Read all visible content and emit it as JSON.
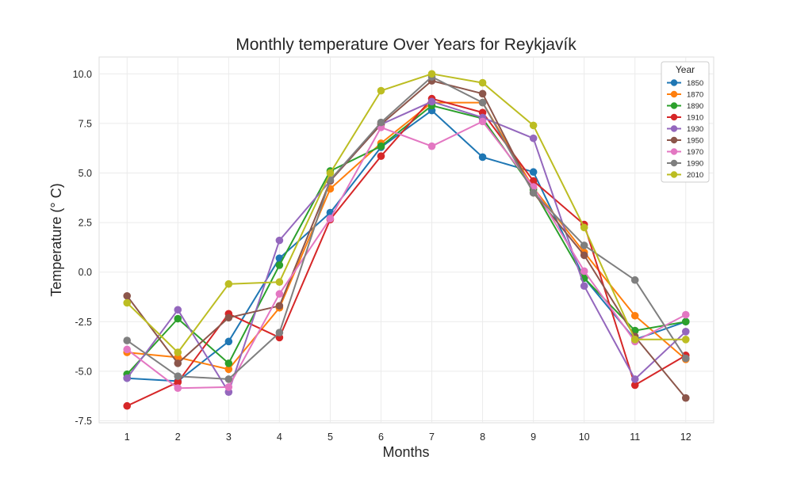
{
  "chart_data": {
    "type": "line",
    "title": "Monthly temperature Over Years for Reykjavík",
    "xlabel": "Months",
    "ylabel": "Temperature (° C)",
    "x": [
      1,
      2,
      3,
      4,
      5,
      6,
      7,
      8,
      9,
      10,
      11,
      12
    ],
    "xlim": [
      0.45,
      12.55
    ],
    "ylim": [
      -7.6,
      10.85
    ],
    "yticks": [
      -7.5,
      -5.0,
      -2.5,
      0.0,
      2.5,
      5.0,
      7.5,
      10.0
    ],
    "grid": true,
    "legend": {
      "title": "Year",
      "placement": "top-right"
    },
    "series": [
      {
        "name": "1850",
        "color": "#1f77b4",
        "values": [
          -5.35,
          -5.5,
          -3.5,
          0.7,
          3.0,
          6.3,
          8.15,
          5.8,
          5.05,
          -0.3,
          -3.4,
          -2.5
        ]
      },
      {
        "name": "1870",
        "color": "#ff7f0e",
        "values": [
          -4.05,
          -4.3,
          -4.9,
          -1.8,
          4.2,
          6.5,
          8.55,
          8.55,
          4.25,
          1.0,
          -2.2,
          -4.4
        ]
      },
      {
        "name": "1890",
        "color": "#2ca02c",
        "values": [
          -5.15,
          -2.35,
          -4.6,
          0.35,
          5.1,
          6.35,
          8.4,
          7.75,
          4.15,
          -0.3,
          -2.95,
          -2.5
        ]
      },
      {
        "name": "1910",
        "color": "#d62728",
        "values": [
          -6.75,
          -5.55,
          -2.1,
          -3.3,
          2.65,
          5.85,
          8.75,
          8.05,
          4.6,
          2.4,
          -5.7,
          -4.2
        ]
      },
      {
        "name": "1930",
        "color": "#9467bd",
        "values": [
          -5.35,
          -1.9,
          -6.05,
          1.6,
          4.6,
          7.45,
          8.6,
          7.8,
          6.75,
          -0.7,
          -5.4,
          -3.0
        ]
      },
      {
        "name": "1950",
        "color": "#8c564b",
        "values": [
          -1.2,
          -4.6,
          -2.3,
          -1.7,
          4.6,
          7.45,
          9.65,
          9.0,
          4.0,
          0.85,
          -3.25,
          -6.35
        ]
      },
      {
        "name": "1970",
        "color": "#e377c2",
        "values": [
          -3.9,
          -5.85,
          -5.8,
          -1.1,
          2.7,
          7.3,
          6.35,
          7.6,
          4.3,
          0.05,
          -3.5,
          -2.15
        ]
      },
      {
        "name": "1990",
        "color": "#7f7f7f",
        "values": [
          -3.45,
          -5.25,
          -5.4,
          -3.05,
          4.65,
          7.55,
          9.85,
          8.55,
          4.0,
          1.35,
          -0.4,
          -4.35
        ]
      },
      {
        "name": "2010",
        "color": "#bcbd22",
        "values": [
          -1.55,
          -4.05,
          -0.6,
          -0.5,
          5.0,
          9.15,
          10.0,
          9.55,
          7.4,
          2.25,
          -3.4,
          -3.4
        ]
      }
    ]
  }
}
